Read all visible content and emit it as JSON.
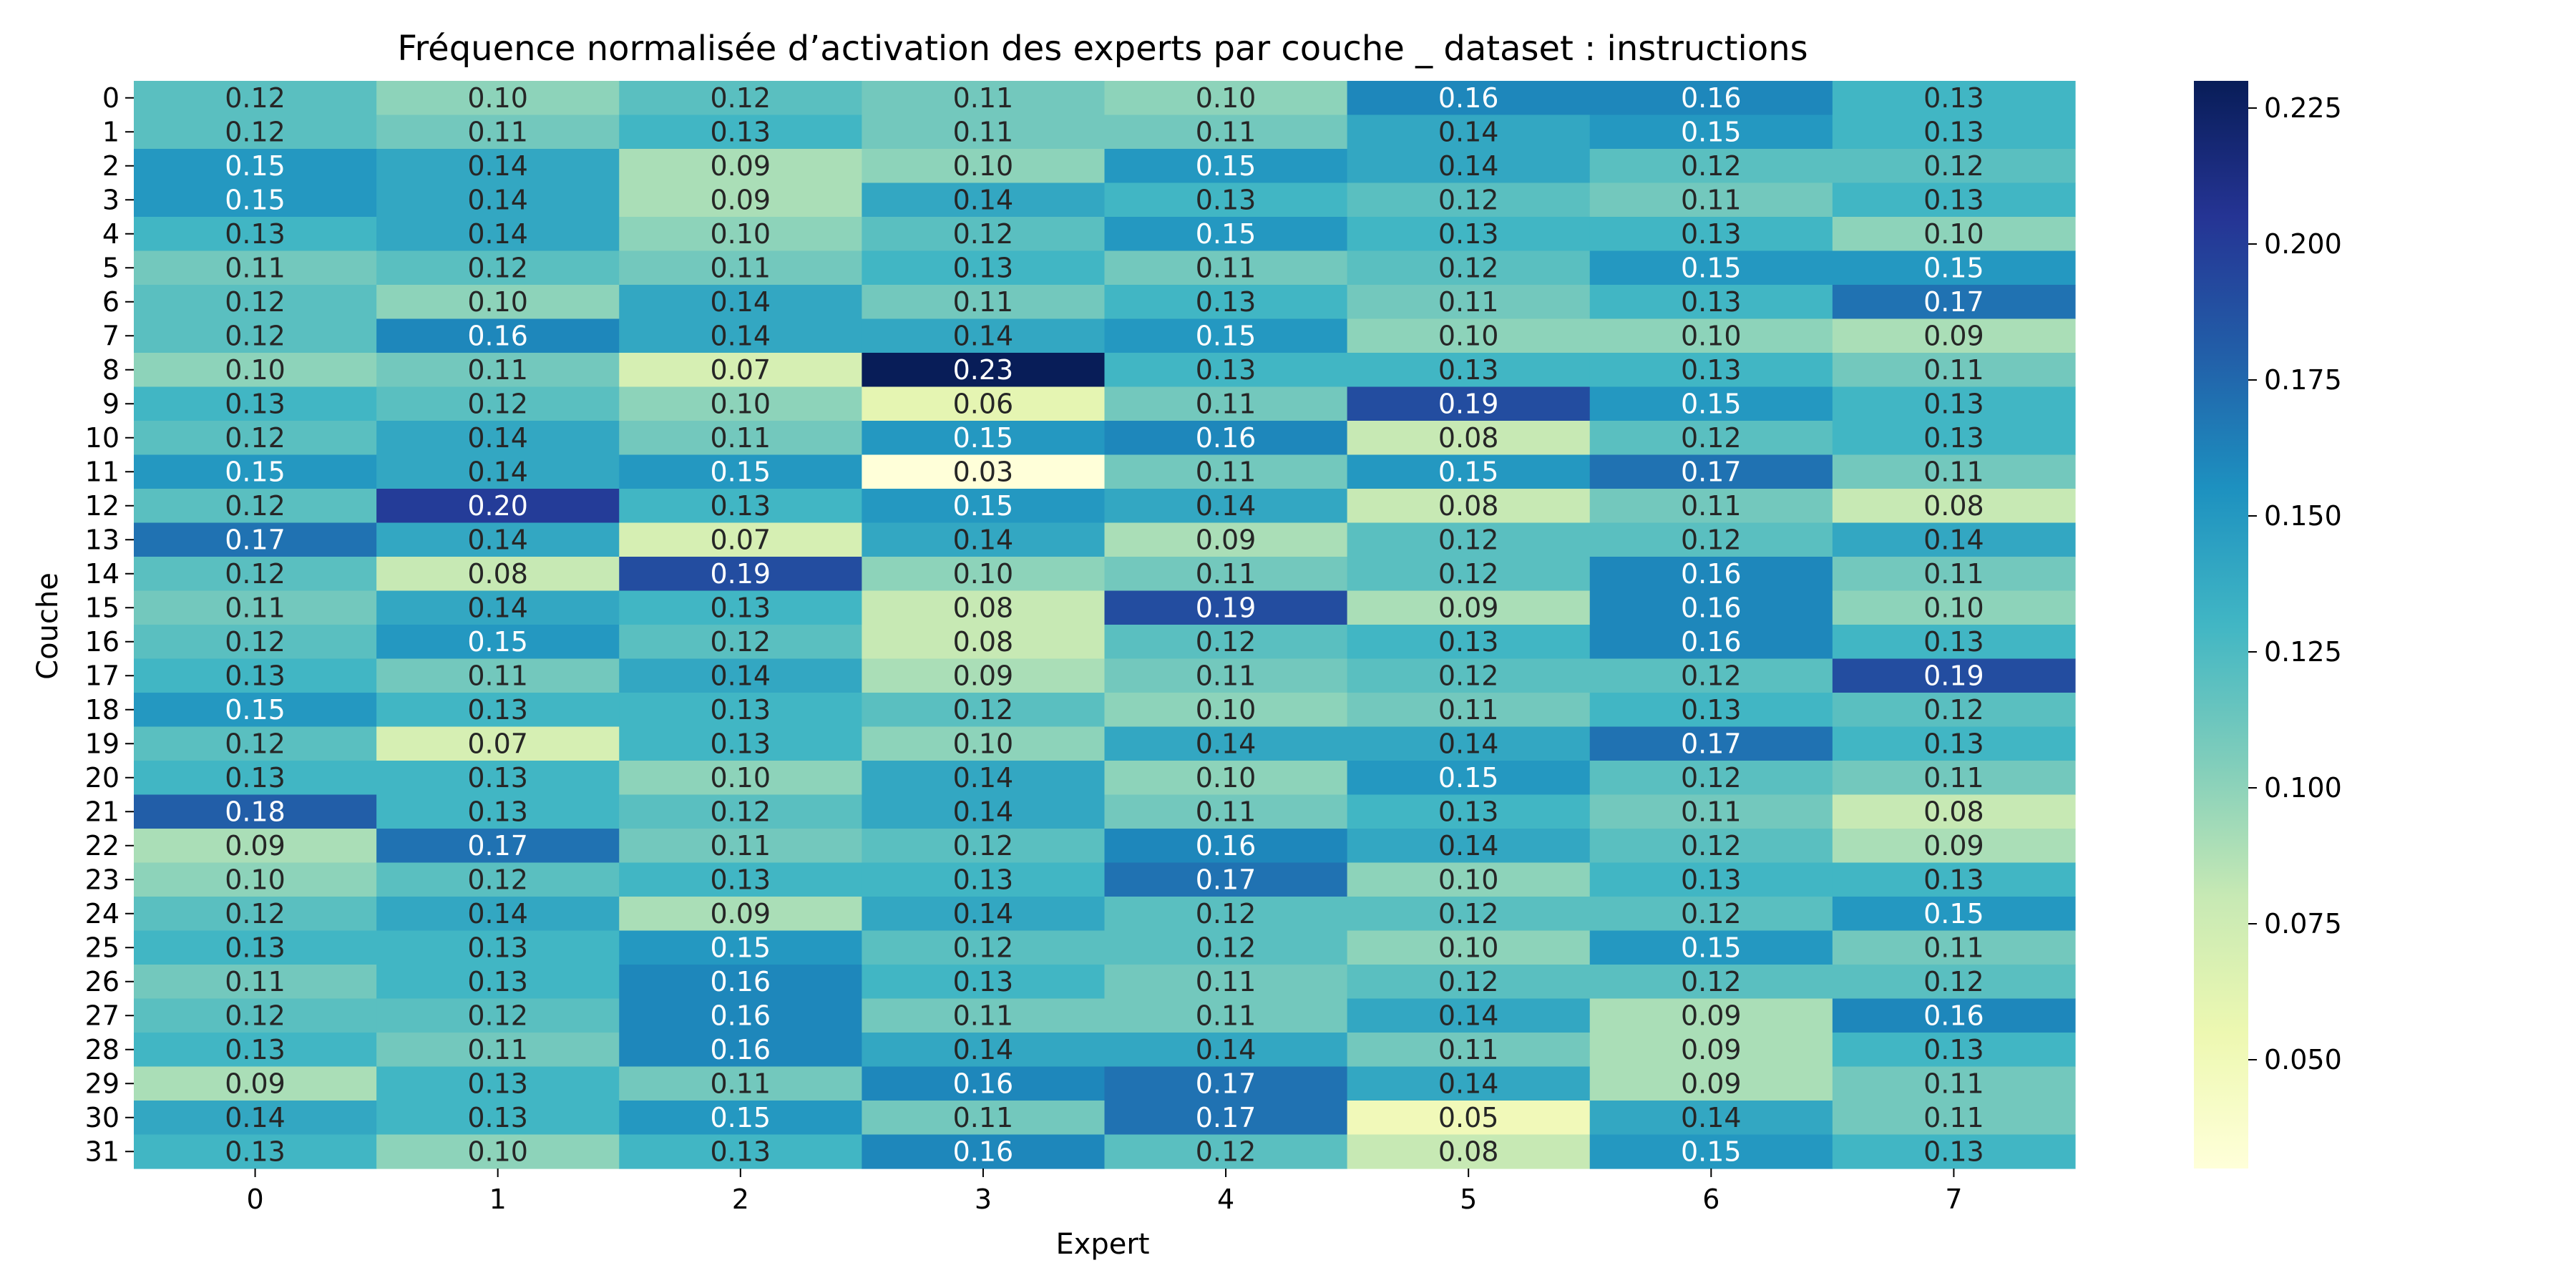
{
  "chart_data": {
    "type": "heatmap",
    "title": "Fréquence normalisée d’activation des experts par couche _ dataset : instructions",
    "xlabel": "Expert",
    "ylabel": "Couche",
    "x_categories": [
      "0",
      "1",
      "2",
      "3",
      "4",
      "5",
      "6",
      "7"
    ],
    "y_categories": [
      "0",
      "1",
      "2",
      "3",
      "4",
      "5",
      "6",
      "7",
      "8",
      "9",
      "10",
      "11",
      "12",
      "13",
      "14",
      "15",
      "16",
      "17",
      "18",
      "19",
      "20",
      "21",
      "22",
      "23",
      "24",
      "25",
      "26",
      "27",
      "28",
      "29",
      "30",
      "31"
    ],
    "colormap": "YlGnBu",
    "vmin": 0.03,
    "vmax": 0.23,
    "colorbar_ticks": [
      "0.050",
      "0.075",
      "0.100",
      "0.125",
      "0.150",
      "0.175",
      "0.200",
      "0.225"
    ],
    "values": [
      [
        0.12,
        0.1,
        0.12,
        0.11,
        0.1,
        0.16,
        0.16,
        0.13
      ],
      [
        0.12,
        0.11,
        0.13,
        0.11,
        0.11,
        0.14,
        0.15,
        0.13
      ],
      [
        0.15,
        0.14,
        0.09,
        0.1,
        0.15,
        0.14,
        0.12,
        0.12
      ],
      [
        0.15,
        0.14,
        0.09,
        0.14,
        0.13,
        0.12,
        0.11,
        0.13
      ],
      [
        0.13,
        0.14,
        0.1,
        0.12,
        0.15,
        0.13,
        0.13,
        0.1
      ],
      [
        0.11,
        0.12,
        0.11,
        0.13,
        0.11,
        0.12,
        0.15,
        0.15
      ],
      [
        0.12,
        0.1,
        0.14,
        0.11,
        0.13,
        0.11,
        0.13,
        0.17
      ],
      [
        0.12,
        0.16,
        0.14,
        0.14,
        0.15,
        0.1,
        0.1,
        0.09
      ],
      [
        0.1,
        0.11,
        0.07,
        0.23,
        0.13,
        0.13,
        0.13,
        0.11
      ],
      [
        0.13,
        0.12,
        0.1,
        0.06,
        0.11,
        0.19,
        0.15,
        0.13
      ],
      [
        0.12,
        0.14,
        0.11,
        0.15,
        0.16,
        0.08,
        0.12,
        0.13
      ],
      [
        0.15,
        0.14,
        0.15,
        0.03,
        0.11,
        0.15,
        0.17,
        0.11
      ],
      [
        0.12,
        0.2,
        0.13,
        0.15,
        0.14,
        0.08,
        0.11,
        0.08
      ],
      [
        0.17,
        0.14,
        0.07,
        0.14,
        0.09,
        0.12,
        0.12,
        0.14
      ],
      [
        0.12,
        0.08,
        0.19,
        0.1,
        0.11,
        0.12,
        0.16,
        0.11
      ],
      [
        0.11,
        0.14,
        0.13,
        0.08,
        0.19,
        0.09,
        0.16,
        0.1
      ],
      [
        0.12,
        0.15,
        0.12,
        0.08,
        0.12,
        0.13,
        0.16,
        0.13
      ],
      [
        0.13,
        0.11,
        0.14,
        0.09,
        0.11,
        0.12,
        0.12,
        0.19
      ],
      [
        0.15,
        0.13,
        0.13,
        0.12,
        0.1,
        0.11,
        0.13,
        0.12
      ],
      [
        0.12,
        0.07,
        0.13,
        0.1,
        0.14,
        0.14,
        0.17,
        0.13
      ],
      [
        0.13,
        0.13,
        0.1,
        0.14,
        0.1,
        0.15,
        0.12,
        0.11
      ],
      [
        0.18,
        0.13,
        0.12,
        0.14,
        0.11,
        0.13,
        0.11,
        0.08
      ],
      [
        0.09,
        0.17,
        0.11,
        0.12,
        0.16,
        0.14,
        0.12,
        0.09
      ],
      [
        0.1,
        0.12,
        0.13,
        0.13,
        0.17,
        0.1,
        0.13,
        0.13
      ],
      [
        0.12,
        0.14,
        0.09,
        0.14,
        0.12,
        0.12,
        0.12,
        0.15
      ],
      [
        0.13,
        0.13,
        0.15,
        0.12,
        0.12,
        0.1,
        0.15,
        0.11
      ],
      [
        0.11,
        0.13,
        0.16,
        0.13,
        0.11,
        0.12,
        0.12,
        0.12
      ],
      [
        0.12,
        0.12,
        0.16,
        0.11,
        0.11,
        0.14,
        0.09,
        0.16
      ],
      [
        0.13,
        0.11,
        0.16,
        0.14,
        0.14,
        0.11,
        0.09,
        0.13
      ],
      [
        0.09,
        0.13,
        0.11,
        0.16,
        0.17,
        0.14,
        0.09,
        0.11
      ],
      [
        0.14,
        0.13,
        0.15,
        0.11,
        0.17,
        0.05,
        0.14,
        0.11
      ],
      [
        0.13,
        0.1,
        0.13,
        0.16,
        0.12,
        0.08,
        0.15,
        0.13
      ]
    ]
  }
}
